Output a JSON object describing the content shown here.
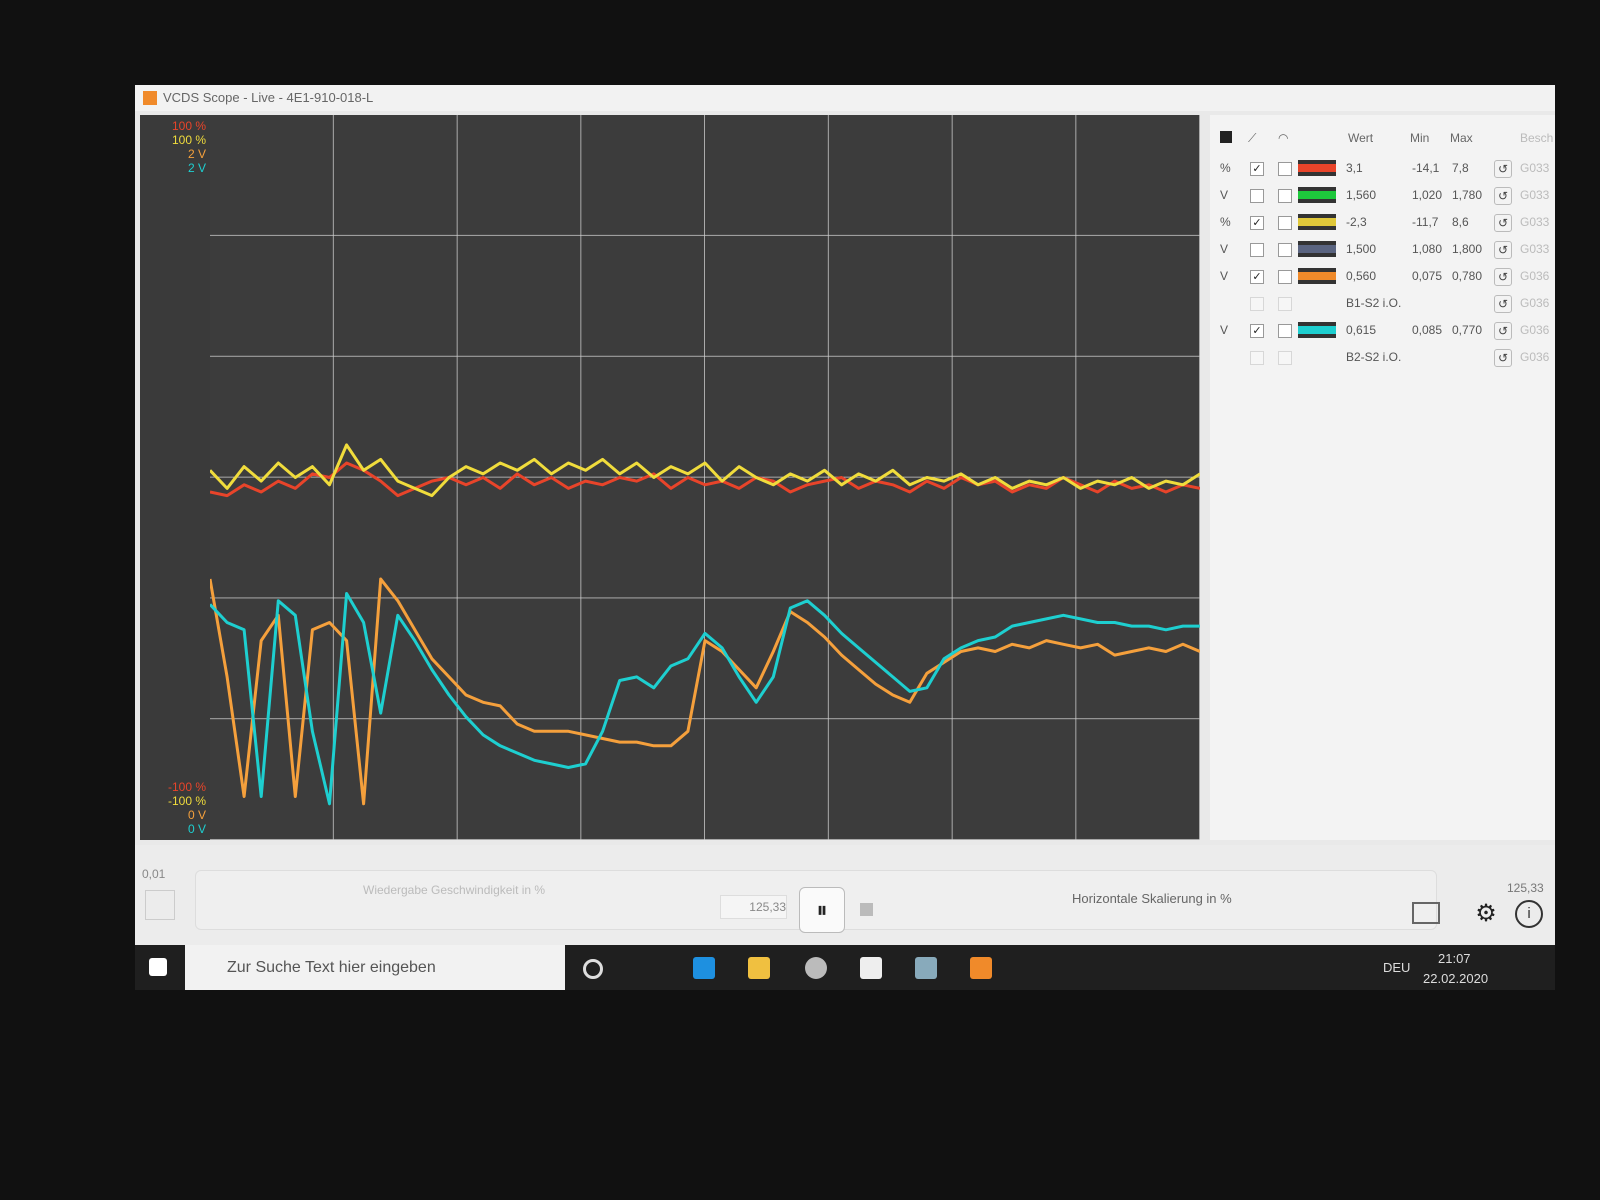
{
  "window": {
    "title": "VCDS Scope - Live - 4E1-910-018-L"
  },
  "scope": {
    "traces": [
      {
        "color": "#e8442a",
        "ylim": [
          -100,
          100
        ],
        "yticks": [
          {
            "value": -100,
            "label": "-100 %"
          },
          {
            "value": 100,
            "label": "100 %"
          }
        ],
        "values": [
          -4,
          -5,
          -2,
          -4,
          -1,
          -3,
          1,
          0,
          4,
          2,
          -1,
          -5,
          -3,
          -1,
          0,
          -2,
          0,
          -3,
          1,
          -2,
          0,
          -3,
          -1,
          -2,
          0,
          -1,
          1,
          -3,
          0,
          -2,
          -1,
          -3,
          0,
          -1,
          -4,
          -2,
          -1,
          0,
          -3,
          -1,
          -2,
          -4,
          -1,
          -3,
          0,
          -2,
          -1,
          -4,
          -2,
          -3,
          0,
          -2,
          -4,
          -1,
          -3,
          -2,
          -4,
          -2,
          -3
        ]
      },
      {
        "color": "#f0dc3c",
        "ylim": [
          -100,
          100
        ],
        "yticks": [
          {
            "value": -100,
            "label": "-100 %"
          },
          {
            "value": 100,
            "label": "100 %"
          }
        ],
        "values": [
          2,
          -3,
          3,
          -1,
          4,
          0,
          3,
          -2,
          9,
          2,
          5,
          -1,
          -3,
          -5,
          0,
          3,
          1,
          4,
          2,
          5,
          1,
          4,
          2,
          5,
          1,
          4,
          0,
          3,
          1,
          4,
          -1,
          3,
          0,
          -2,
          1,
          -1,
          2,
          -2,
          1,
          -1,
          2,
          -2,
          0,
          -1,
          1,
          -2,
          0,
          -3,
          -1,
          -2,
          0,
          -3,
          -1,
          -2,
          0,
          -3,
          -1,
          -2,
          1
        ]
      },
      {
        "color": "#f5a03c",
        "ylim": [
          0,
          2
        ],
        "yticks": [
          {
            "value": 0,
            "label": "0 V"
          },
          {
            "value": 2,
            "label": "2 V"
          }
        ],
        "values": [
          0.72,
          0.45,
          0.12,
          0.55,
          0.62,
          0.12,
          0.58,
          0.6,
          0.55,
          0.1,
          0.72,
          0.66,
          0.58,
          0.5,
          0.45,
          0.4,
          0.38,
          0.37,
          0.32,
          0.3,
          0.3,
          0.3,
          0.29,
          0.28,
          0.27,
          0.27,
          0.26,
          0.26,
          0.3,
          0.55,
          0.52,
          0.47,
          0.42,
          0.52,
          0.63,
          0.6,
          0.56,
          0.51,
          0.47,
          0.43,
          0.4,
          0.38,
          0.46,
          0.49,
          0.52,
          0.53,
          0.52,
          0.54,
          0.53,
          0.55,
          0.54,
          0.53,
          0.54,
          0.51,
          0.52,
          0.53,
          0.52,
          0.54,
          0.52
        ]
      },
      {
        "color": "#1ecfd0",
        "ylim": [
          0,
          2
        ],
        "yticks": [
          {
            "value": 0,
            "label": "0 V"
          },
          {
            "value": 2,
            "label": "2 V"
          }
        ],
        "values": [
          0.65,
          0.6,
          0.58,
          0.12,
          0.66,
          0.62,
          0.3,
          0.1,
          0.68,
          0.6,
          0.35,
          0.62,
          0.55,
          0.47,
          0.4,
          0.34,
          0.29,
          0.26,
          0.24,
          0.22,
          0.21,
          0.2,
          0.21,
          0.3,
          0.44,
          0.45,
          0.42,
          0.48,
          0.5,
          0.57,
          0.53,
          0.45,
          0.38,
          0.45,
          0.64,
          0.66,
          0.62,
          0.57,
          0.53,
          0.49,
          0.45,
          0.41,
          0.42,
          0.5,
          0.53,
          0.55,
          0.56,
          0.59,
          0.6,
          0.61,
          0.62,
          0.61,
          0.6,
          0.6,
          0.59,
          0.59,
          0.58,
          0.59,
          0.59
        ]
      }
    ]
  },
  "channels": {
    "headers": [
      "Wert",
      "Min",
      "Max",
      "Besch"
    ],
    "rows": [
      {
        "unit": "%",
        "shown": true,
        "color": "#e8442a",
        "wert": "3,1",
        "min": "-14,1",
        "max": "7,8",
        "id": "G033"
      },
      {
        "unit": "V",
        "shown": false,
        "color": "#1ec83c",
        "wert": "1,560",
        "min": "1,020",
        "max": "1,780",
        "id": "G033"
      },
      {
        "unit": "%",
        "shown": true,
        "color": "#e0c83a",
        "wert": "-2,3",
        "min": "-11,7",
        "max": "8,6",
        "id": "G033"
      },
      {
        "unit": "V",
        "shown": false,
        "color": "#5a6480",
        "wert": "1,500",
        "min": "1,080",
        "max": "1,800",
        "id": "G033"
      },
      {
        "unit": "V",
        "shown": true,
        "color": "#f08a2a",
        "wert": "0,560",
        "min": "0,075",
        "max": "0,780",
        "id": "G036"
      },
      {
        "wert": "B1-S2 i.O.",
        "id": "G036"
      },
      {
        "unit": "V",
        "shown": true,
        "color": "#1ecfd0",
        "wert": "0,615",
        "min": "0,085",
        "max": "0,770",
        "id": "G036"
      },
      {
        "wert": "B2-S2 i.O.",
        "id": "G036"
      }
    ]
  },
  "controls": {
    "left_value": "0,01",
    "speed_label": "Wiedergabe Geschwindigkeit in %",
    "speed_value": "125,33",
    "hscale_label": "Horizontale Skalierung in %",
    "right_value": "125,33"
  },
  "taskbar": {
    "search": "Zur Suche Text hier eingeben",
    "lang": "DEU",
    "time": "21:07",
    "date": "22.02.2020"
  }
}
